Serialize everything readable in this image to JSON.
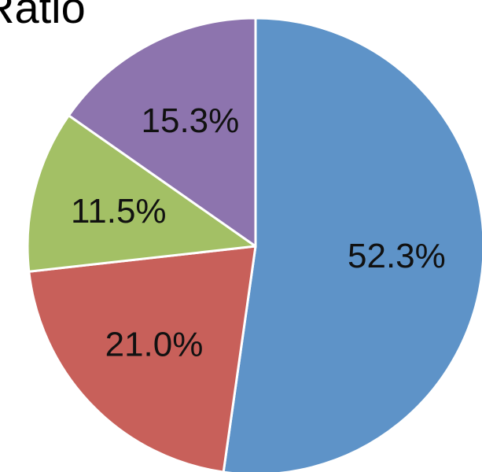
{
  "chart_data": {
    "type": "pie",
    "title": "Ratio",
    "slices": [
      {
        "label": "52.3%",
        "value": 52.3,
        "color": "#5e93c8"
      },
      {
        "label": "21.0%",
        "value": 21.0,
        "color": "#c8605a"
      },
      {
        "label": "11.5%",
        "value": 11.5,
        "color": "#a3c065"
      },
      {
        "label": "15.3%",
        "value": 15.3,
        "color": "#8d74ae"
      }
    ],
    "start_angle_deg": 0,
    "direction": "clockwise",
    "legend": "none"
  }
}
